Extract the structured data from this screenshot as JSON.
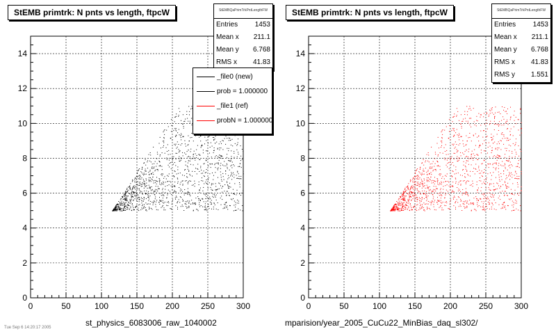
{
  "chart_data": [
    {
      "type": "scatter",
      "title": "StEMB primtrk: N pnts vs length, ftpcW",
      "xlim": [
        0,
        300
      ],
      "ylim": [
        0,
        15
      ],
      "xticks": [
        "0",
        "50",
        "100",
        "150",
        "200",
        "250",
        "300"
      ],
      "yticks": [
        "0",
        "2",
        "4",
        "6",
        "8",
        "10",
        "12",
        "14"
      ],
      "grid": true,
      "marker_color": "#000000",
      "xlabel": "st_physics_6083006_raw_1040002",
      "ylabel": "",
      "stats": {
        "title": "StEMBQaPrimTrkPntLengthFW",
        "entries_label": "Entries",
        "entries": "1453",
        "meanx_label": "Mean x",
        "meanx": "211.1",
        "meany_label": "Mean y",
        "meany": "6.768",
        "rmsx_label": "RMS x",
        "rmsx": "41.83"
      },
      "legend": {
        "placement": "top-right",
        "entries": [
          {
            "label": "_file0 (new)",
            "color": "#000000"
          },
          {
            "label": "prob = 1.000000",
            "color": "#000000"
          },
          {
            "label": "_file1 (ref)",
            "color": "#ff0000"
          },
          {
            "label": "probN = 1.000000",
            "color": "#ff0000"
          }
        ]
      },
      "point_count": 1453,
      "x_range_populated": [
        115,
        300
      ],
      "y_range_populated": [
        5,
        11
      ],
      "mean_x": 211.1,
      "mean_y": 6.768,
      "rms_x": 41.83,
      "rms_y": 1.551
    },
    {
      "type": "scatter",
      "title": "StEMB primtrk: N pnts vs length, ftpcW",
      "xlim": [
        0,
        300
      ],
      "ylim": [
        0,
        15
      ],
      "xticks": [
        "0",
        "50",
        "100",
        "150",
        "200",
        "250",
        "300"
      ],
      "yticks": [
        "0",
        "2",
        "4",
        "6",
        "8",
        "10",
        "12",
        "14"
      ],
      "grid": true,
      "marker_color": "#ff0000",
      "xlabel": "mparision/year_2005_CuCu22_MinBias_daq_sl302/",
      "ylabel": "",
      "stats": {
        "title": "StEMBQaPrimTrkPntLengthFW",
        "entries_label": "Entries",
        "entries": "1453",
        "meanx_label": "Mean x",
        "meanx": "211.1",
        "meany_label": "Mean y",
        "meany": "6.768",
        "rmsx_label": "RMS x",
        "rmsx": "41.83",
        "rmsy_label": "RMS y",
        "rmsy": "1.551"
      },
      "point_count": 1453,
      "x_range_populated": [
        115,
        300
      ],
      "y_range_populated": [
        5,
        11
      ],
      "mean_x": 211.1,
      "mean_y": 6.768,
      "rms_x": 41.83,
      "rms_y": 1.551
    }
  ],
  "footnote": "Tue Sep 6 14:20:17 2005"
}
